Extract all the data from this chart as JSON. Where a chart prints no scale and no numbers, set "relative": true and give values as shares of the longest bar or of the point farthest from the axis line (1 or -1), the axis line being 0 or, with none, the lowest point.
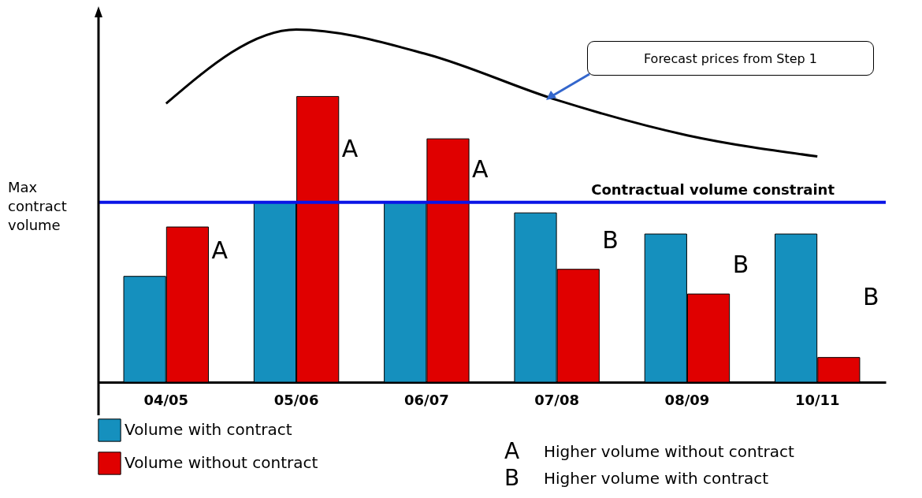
{
  "chart_data": {
    "type": "bar",
    "relative": true,
    "categories": [
      "04/05",
      "05/06",
      "06/07",
      "07/08",
      "08/09",
      "10/11"
    ],
    "series": [
      {
        "name": "Volume with contract",
        "color": "#1590be",
        "values": [
          0.3,
          0.51,
          0.51,
          0.48,
          0.42,
          0.42
        ]
      },
      {
        "name": "Volume without contract",
        "color": "#e00000",
        "values": [
          0.44,
          0.81,
          0.69,
          0.32,
          0.25,
          0.07
        ]
      },
      {
        "type": "line",
        "color": "#000000",
        "values": [
          0.79,
          1,
          0.93,
          0.8,
          0.7,
          0.64
        ]
      }
    ],
    "ref_lines": [
      {
        "axis": "y",
        "value": 0.51,
        "label": "Contractual volume constraint",
        "color": "#0a14e6"
      }
    ],
    "annotations": [
      {
        "text": "A",
        "x": "04/05",
        "y": 0.37
      },
      {
        "text": "A",
        "x": "05/06",
        "y": 0.66
      },
      {
        "text": "A",
        "x": "06/07",
        "y": 0.6
      },
      {
        "text": "B",
        "x": "07/08",
        "y": 0.4
      },
      {
        "text": "B",
        "x": "08/09",
        "y": 0.33
      },
      {
        "text": "B",
        "x": "10/11",
        "y": 0.24
      },
      "Forecast prices from Step 1",
      "Max contract volume",
      "A",
      "Higher volume without contract",
      "B",
      "Higher volume with contract"
    ],
    "legend": "bottom"
  }
}
